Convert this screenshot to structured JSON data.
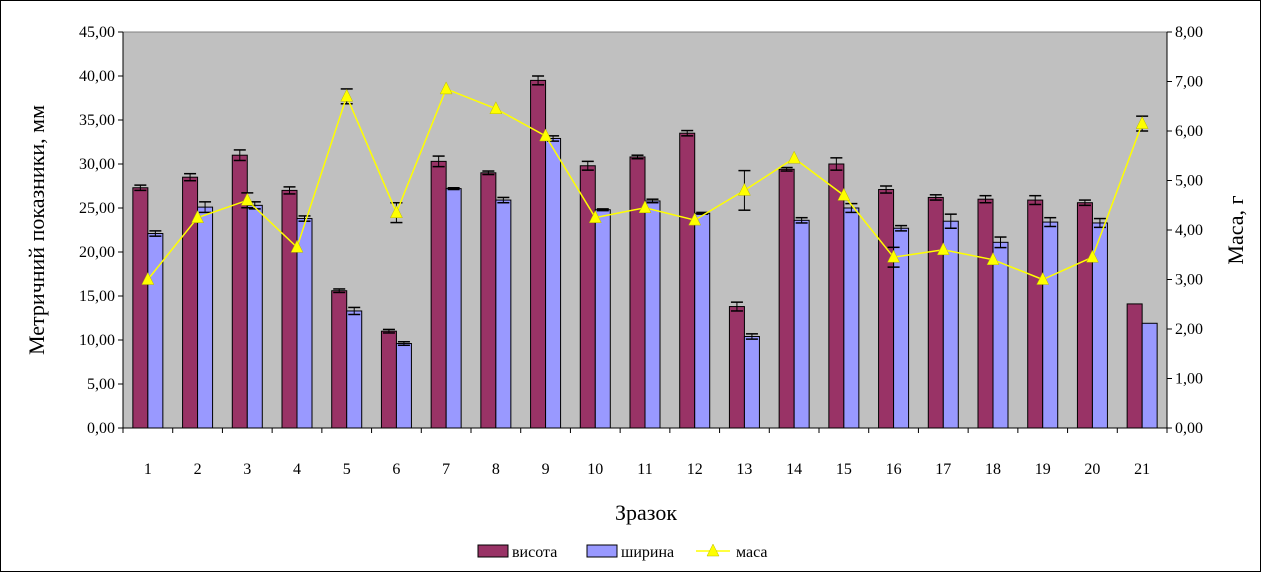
{
  "chart_data": {
    "type": "bar",
    "xlabel": "Зразок",
    "ylabel": "Метричний показники, мм",
    "y2label": "Маса, г",
    "categories": [
      "1",
      "2",
      "3",
      "4",
      "5",
      "6",
      "7",
      "8",
      "9",
      "10",
      "11",
      "12",
      "13",
      "14",
      "15",
      "16",
      "17",
      "18",
      "19",
      "20",
      "21"
    ],
    "ylim": [
      0,
      45
    ],
    "y2lim": [
      0,
      8
    ],
    "yticks": [
      "0,00",
      "5,00",
      "10,00",
      "15,00",
      "20,00",
      "25,00",
      "30,00",
      "35,00",
      "40,00",
      "45,00"
    ],
    "y2ticks": [
      "0,00",
      "1,00",
      "2,00",
      "3,00",
      "4,00",
      "5,00",
      "6,00",
      "7,00",
      "8,00"
    ],
    "plot_background": "#c0c0c0",
    "series": [
      {
        "name": "висота",
        "kind": "bar",
        "axis": "left",
        "color": "#993366",
        "values": [
          27.3,
          28.5,
          31.0,
          27.0,
          15.6,
          11.0,
          30.3,
          29.0,
          39.5,
          29.8,
          30.8,
          33.5,
          13.8,
          29.4,
          30.0,
          27.1,
          26.2,
          26.0,
          25.9,
          25.6,
          14.1
        ],
        "errors": [
          0.3,
          0.4,
          0.6,
          0.4,
          0.2,
          0.2,
          0.6,
          0.2,
          0.5,
          0.5,
          0.2,
          0.3,
          0.5,
          0.2,
          0.7,
          0.4,
          0.3,
          0.4,
          0.5,
          0.3,
          0.0
        ]
      },
      {
        "name": "ширина",
        "kind": "bar",
        "axis": "left",
        "color": "#9999ff",
        "values": [
          22.1,
          25.1,
          25.3,
          23.8,
          13.3,
          9.6,
          27.2,
          25.9,
          32.9,
          24.8,
          25.8,
          24.4,
          10.4,
          23.6,
          25.0,
          22.7,
          23.5,
          21.1,
          23.4,
          23.3,
          11.9
        ],
        "errors": [
          0.3,
          0.6,
          0.4,
          0.3,
          0.4,
          0.2,
          0.1,
          0.3,
          0.3,
          0.1,
          0.2,
          0.1,
          0.3,
          0.3,
          0.5,
          0.3,
          0.8,
          0.6,
          0.5,
          0.5,
          0.0
        ]
      },
      {
        "name": "маса",
        "kind": "line",
        "axis": "right",
        "color": "#ffff00",
        "values": [
          3.0,
          4.25,
          4.6,
          3.65,
          6.7,
          4.35,
          6.85,
          6.45,
          5.9,
          4.25,
          4.45,
          4.2,
          4.8,
          5.45,
          4.7,
          3.45,
          3.6,
          3.4,
          3.0,
          3.45,
          6.15
        ],
        "errors": [
          0.0,
          0.0,
          0.15,
          0.0,
          0.15,
          0.2,
          0.0,
          0.0,
          0.0,
          0.0,
          0.0,
          0.0,
          0.4,
          0.0,
          0.0,
          0.2,
          0.0,
          0.0,
          0.0,
          0.0,
          0.15
        ]
      }
    ],
    "legend": {
      "position": "bottom",
      "items": [
        "висота",
        "ширина",
        "маса"
      ]
    }
  }
}
